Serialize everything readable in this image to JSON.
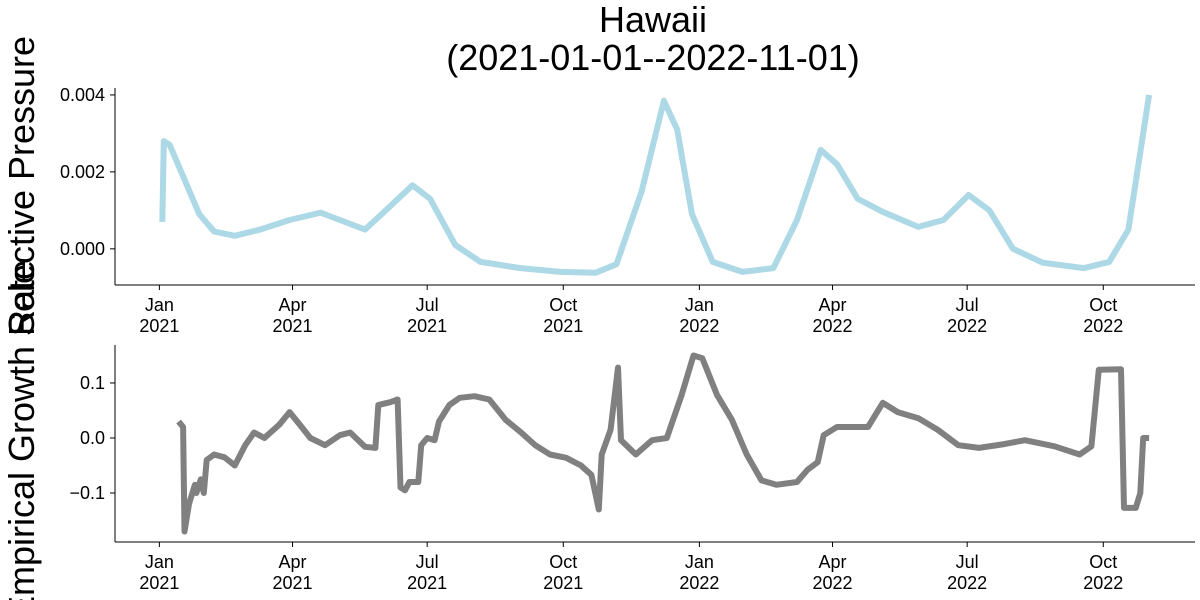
{
  "chart_data": [
    {
      "type": "line",
      "title": "Hawaii\n(2021-01-01--2022-11-01)",
      "ylabel": "Selective Pressure",
      "color": "#add8e6",
      "x": [
        "2021-01-03",
        "2021-01-04",
        "2021-01-08",
        "2021-01-18",
        "2021-01-28",
        "2021-02-07",
        "2021-02-21",
        "2021-03-10",
        "2021-03-30",
        "2021-04-20",
        "2021-05-03",
        "2021-05-20",
        "2021-06-03",
        "2021-06-21",
        "2021-07-03",
        "2021-07-20",
        "2021-08-06",
        "2021-09-02",
        "2021-09-29",
        "2021-10-23",
        "2021-11-06",
        "2021-11-23",
        "2021-12-08",
        "2021-12-17",
        "2021-12-27",
        "2022-01-10",
        "2022-01-30",
        "2022-02-20",
        "2022-03-08",
        "2022-03-24",
        "2022-04-04",
        "2022-04-18",
        "2022-05-05",
        "2022-05-29",
        "2022-06-15",
        "2022-07-02",
        "2022-07-16",
        "2022-08-01",
        "2022-08-21",
        "2022-09-18",
        "2022-10-05",
        "2022-10-18",
        "2022-11-01"
      ],
      "values": [
        0.0007,
        0.0028,
        0.0027,
        0.0018,
        0.0009,
        0.00045,
        0.00034,
        0.0005,
        0.00075,
        0.00094,
        0.00075,
        0.0005,
        0.001,
        0.00165,
        0.0013,
        0.0001,
        -0.00034,
        -0.0005,
        -0.0006,
        -0.00062,
        -0.0004,
        0.0015,
        0.00385,
        0.0031,
        0.0009,
        -0.00034,
        -0.0006,
        -0.0005,
        0.00075,
        0.00257,
        0.0022,
        0.0013,
        0.00096,
        0.00057,
        0.00075,
        0.0014,
        0.001,
        0.0,
        -0.00036,
        -0.0005,
        -0.00034,
        0.0005,
        0.004
      ],
      "xlim": [
        "2020-12-02",
        "2022-12-02"
      ],
      "xticks": [
        {
          "value": "2021-01-01",
          "label": "Jan\n2021"
        },
        {
          "value": "2021-04-01",
          "label": "Apr\n2021"
        },
        {
          "value": "2021-07-01",
          "label": "Jul\n2021"
        },
        {
          "value": "2021-10-01",
          "label": "Oct\n2021"
        },
        {
          "value": "2022-01-01",
          "label": "Jan\n2022"
        },
        {
          "value": "2022-04-01",
          "label": "Apr\n2022"
        },
        {
          "value": "2022-07-01",
          "label": "Jul\n2022"
        },
        {
          "value": "2022-10-01",
          "label": "Oct\n2022"
        }
      ],
      "ylim": [
        -0.00094,
        0.00418
      ],
      "yticks": [
        {
          "value": 0,
          "label": "0.000"
        },
        {
          "value": 0.002,
          "label": "0.002"
        },
        {
          "value": 0.004,
          "label": "0.004"
        }
      ]
    },
    {
      "type": "line",
      "ylabel": "Empirical Growth Rate",
      "color": "#808080",
      "x": [
        "2021-01-14",
        "2021-01-17",
        "2021-01-18",
        "2021-01-21",
        "2021-01-25",
        "2021-01-26",
        "2021-01-29",
        "2021-01-31",
        "2021-02-02",
        "2021-02-07",
        "2021-02-14",
        "2021-02-21",
        "2021-02-28",
        "2021-03-06",
        "2021-03-13",
        "2021-03-23",
        "2021-03-30",
        "2021-04-06",
        "2021-04-13",
        "2021-04-23",
        "2021-05-03",
        "2021-05-10",
        "2021-05-20",
        "2021-05-27",
        "2021-05-29",
        "2021-06-06",
        "2021-06-11",
        "2021-06-13",
        "2021-06-16",
        "2021-06-19",
        "2021-06-25",
        "2021-06-27",
        "2021-07-01",
        "2021-07-06",
        "2021-07-09",
        "2021-07-16",
        "2021-07-23",
        "2021-08-02",
        "2021-08-12",
        "2021-08-23",
        "2021-09-02",
        "2021-09-12",
        "2021-09-22",
        "2021-10-03",
        "2021-10-13",
        "2021-10-20",
        "2021-10-25",
        "2021-10-27",
        "2021-11-02",
        "2021-11-07",
        "2021-11-09",
        "2021-11-19",
        "2021-11-30",
        "2021-12-10",
        "2021-12-20",
        "2021-12-28",
        "2022-01-03",
        "2022-01-13",
        "2022-01-23",
        "2022-02-02",
        "2022-02-12",
        "2022-02-22",
        "2022-03-08",
        "2022-03-15",
        "2022-03-22",
        "2022-03-26",
        "2022-04-04",
        "2022-04-25",
        "2022-05-05",
        "2022-05-15",
        "2022-05-29",
        "2022-06-11",
        "2022-06-25",
        "2022-07-09",
        "2022-07-26",
        "2022-08-09",
        "2022-08-29",
        "2022-09-15",
        "2022-09-23",
        "2022-09-28",
        "2022-10-13",
        "2022-10-15",
        "2022-10-23",
        "2022-10-26",
        "2022-10-28",
        "2022-11-01"
      ],
      "values": [
        0.03,
        0.02,
        -0.17,
        -0.12,
        -0.085,
        -0.1,
        -0.075,
        -0.1,
        -0.04,
        -0.03,
        -0.035,
        -0.05,
        -0.013,
        0.01,
        0.0,
        0.024,
        0.047,
        0.024,
        0.0,
        -0.013,
        0.005,
        0.01,
        -0.016,
        -0.018,
        0.06,
        0.065,
        0.07,
        -0.09,
        -0.095,
        -0.08,
        -0.08,
        -0.013,
        0.0,
        -0.004,
        0.03,
        0.06,
        0.073,
        0.076,
        0.07,
        0.033,
        0.011,
        -0.013,
        -0.03,
        -0.036,
        -0.05,
        -0.067,
        -0.13,
        -0.03,
        0.015,
        0.128,
        -0.004,
        -0.03,
        -0.004,
        0.0,
        0.078,
        0.15,
        0.145,
        0.078,
        0.033,
        -0.03,
        -0.077,
        -0.085,
        -0.08,
        -0.058,
        -0.044,
        0.005,
        0.02,
        0.02,
        0.064,
        0.047,
        0.036,
        0.015,
        -0.013,
        -0.018,
        -0.011,
        -0.004,
        -0.015,
        -0.03,
        -0.015,
        0.124,
        0.125,
        -0.127,
        -0.127,
        -0.1,
        0.0,
        0.0
      ],
      "xlim": [
        "2020-12-02",
        "2022-12-02"
      ],
      "xticks": [
        {
          "value": "2021-01-01",
          "label": "Jan\n2021"
        },
        {
          "value": "2021-04-01",
          "label": "Apr\n2021"
        },
        {
          "value": "2021-07-01",
          "label": "Jul\n2021"
        },
        {
          "value": "2021-10-01",
          "label": "Oct\n2021"
        },
        {
          "value": "2022-01-01",
          "label": "Jan\n2022"
        },
        {
          "value": "2022-04-01",
          "label": "Apr\n2022"
        },
        {
          "value": "2022-07-01",
          "label": "Jul\n2022"
        },
        {
          "value": "2022-10-01",
          "label": "Oct\n2022"
        }
      ],
      "ylim": [
        -0.189,
        0.169
      ],
      "yticks": [
        {
          "value": -0.1,
          "label": "−0.1"
        },
        {
          "value": 0,
          "label": "0.0"
        },
        {
          "value": 0.1,
          "label": "0.1"
        }
      ]
    }
  ]
}
